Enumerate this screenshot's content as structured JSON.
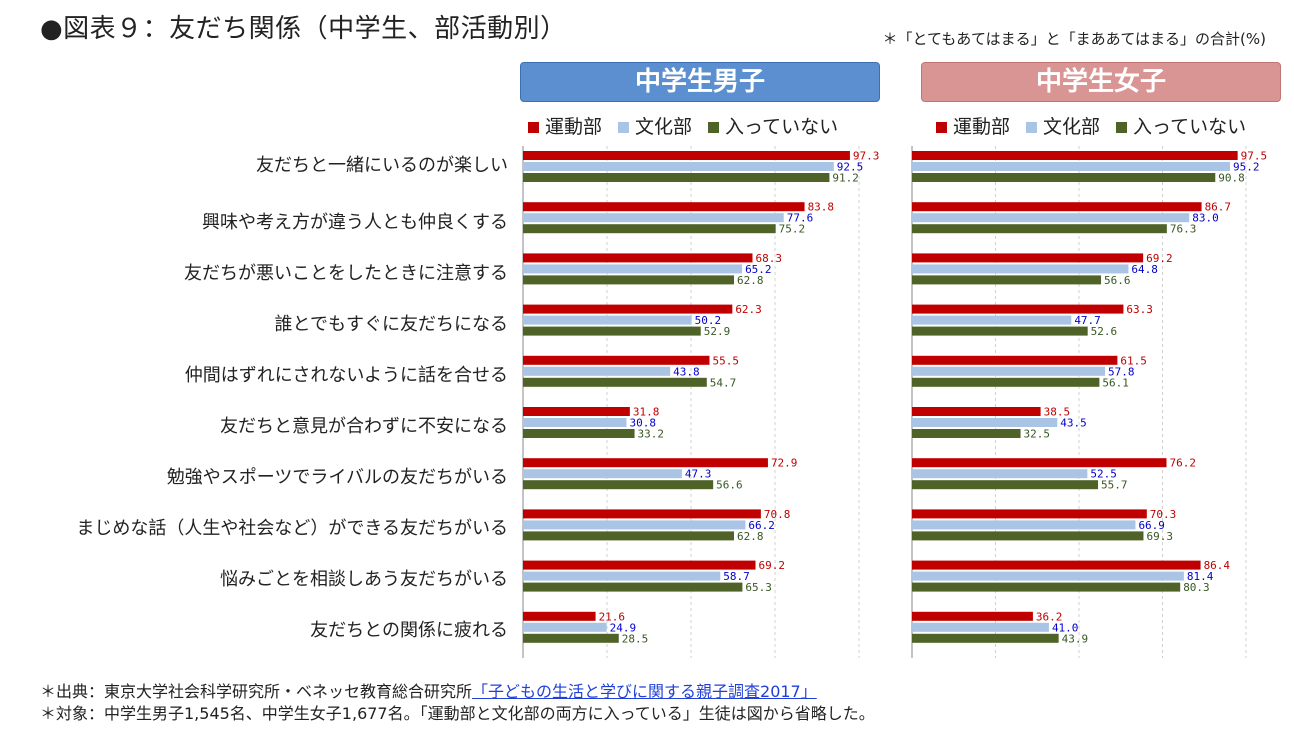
{
  "title": "●図表９：友だち関係（中学生、部活動別）",
  "note": "＊「とてもあてはまる」と「まああてはまる」の合計(%)",
  "panels": [
    {
      "title": "中学生男子",
      "header_color": "#5b8fcf"
    },
    {
      "title": "中学生女子",
      "header_color": "#d99594"
    }
  ],
  "legend": {
    "undo": "運動部",
    "bunka": "文化部",
    "none": "入っていない"
  },
  "colors": {
    "undo": "#c00000",
    "bunka": "#a9c4e4",
    "none": "#4f6228",
    "undo_label": "#c00000",
    "bunka_label": "#0000cc",
    "none_label": "#375623"
  },
  "chart_data": [
    {
      "type": "bar",
      "orientation": "horizontal",
      "title": "中学生男子",
      "xlim": [
        0,
        100
      ],
      "categories": [
        "友だちと一緒にいるのが楽しい",
        "興味や考え方が違う人とも仲良くする",
        "友だちが悪いことをしたときに注意する",
        "誰とでもすぐに友だちになる",
        "仲間はずれにされないように話を合せる",
        "友だちと意見が合わずに不安になる",
        "勉強やスポーツでライバルの友だちがいる",
        "まじめな話（人生や社会など）ができる友だちがいる",
        "悩みごとを相談しあう友だちがいる",
        "友だちとの関係に疲れる"
      ],
      "series": [
        {
          "name": "運動部",
          "values": [
            97.3,
            83.8,
            68.3,
            62.3,
            55.5,
            31.8,
            72.9,
            70.8,
            69.2,
            21.6
          ]
        },
        {
          "name": "文化部",
          "values": [
            92.5,
            77.6,
            65.2,
            50.2,
            43.8,
            30.8,
            47.3,
            66.2,
            58.7,
            24.9
          ]
        },
        {
          "name": "入っていない",
          "values": [
            91.2,
            75.2,
            62.8,
            52.9,
            54.7,
            33.2,
            56.6,
            62.8,
            65.3,
            28.5
          ]
        }
      ]
    },
    {
      "type": "bar",
      "orientation": "horizontal",
      "title": "中学生女子",
      "xlim": [
        0,
        100
      ],
      "categories": [
        "友だちと一緒にいるのが楽しい",
        "興味や考え方が違う人とも仲良くする",
        "友だちが悪いことをしたときに注意する",
        "誰とでもすぐに友だちになる",
        "仲間はずれにされないように話を合せる",
        "友だちと意見が合わずに不安になる",
        "勉強やスポーツでライバルの友だちがいる",
        "まじめな話（人生や社会など）ができる友だちがいる",
        "悩みごとを相談しあう友だちがいる",
        "友だちとの関係に疲れる"
      ],
      "series": [
        {
          "name": "運動部",
          "values": [
            97.5,
            86.7,
            69.2,
            63.3,
            61.5,
            38.5,
            76.2,
            70.3,
            86.4,
            36.2
          ]
        },
        {
          "name": "文化部",
          "values": [
            95.2,
            83.0,
            64.8,
            47.7,
            57.8,
            43.5,
            52.5,
            66.9,
            81.4,
            41.0
          ]
        },
        {
          "name": "入っていない",
          "values": [
            90.8,
            76.3,
            56.6,
            52.6,
            56.1,
            32.5,
            55.7,
            69.3,
            80.3,
            43.9
          ]
        }
      ]
    }
  ],
  "footer": {
    "source_prefix": "＊出典：東京大学社会科学研究所・ベネッセ教育総合研究所",
    "source_link": "「子どもの生活と学びに関する親子調査2017」",
    "target": "＊対象：中学生男子1,545名、中学生女子1,677名。「運動部と文化部の両方に入っている」生徒は図から省略した。"
  }
}
